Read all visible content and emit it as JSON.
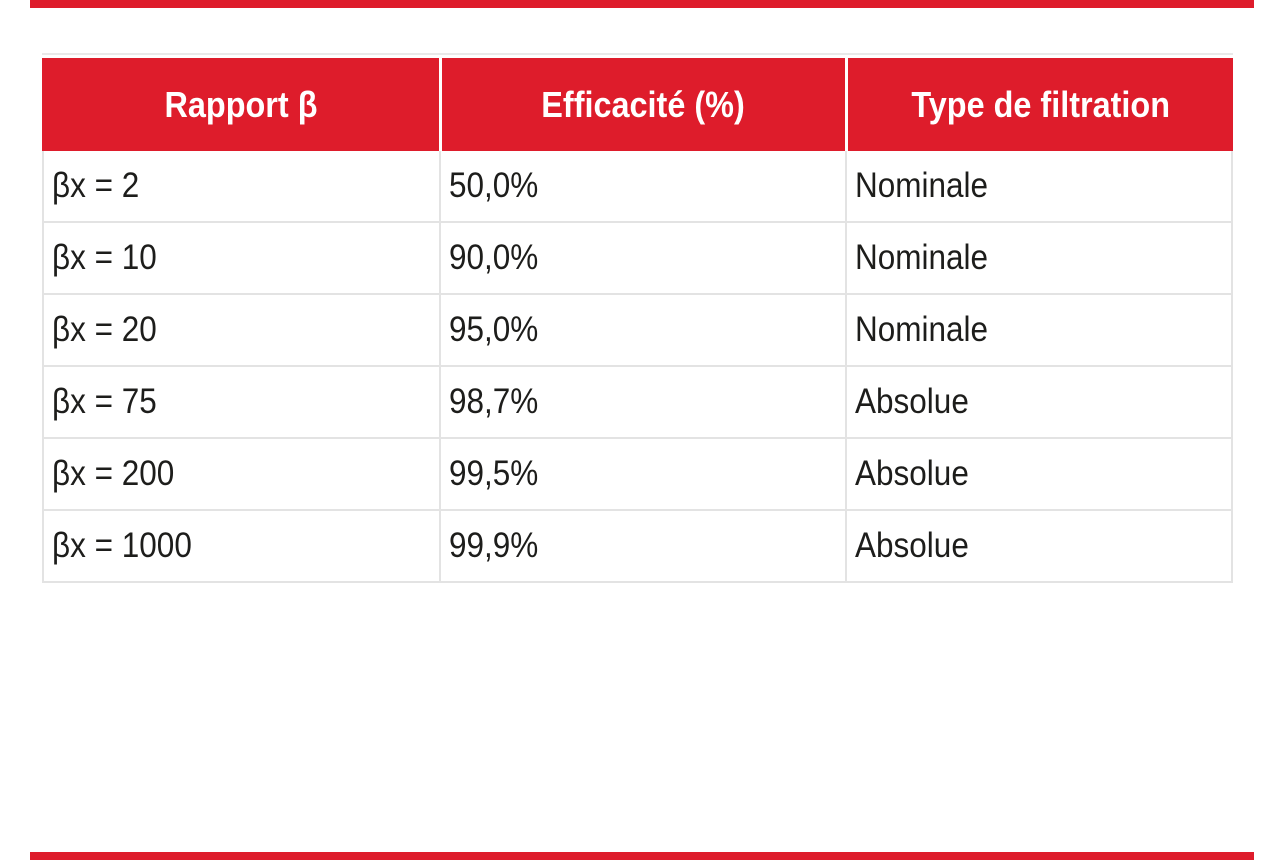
{
  "page": {
    "background_color": "#FFFFFF",
    "accent_red": "#DE1C2B",
    "text_color": "#1D1D1B",
    "grid_line_color": "#E3E3E3"
  },
  "decor": {
    "top_edge_bar": "red-bleed-bar",
    "bottom_edge_bar": "red-bleed-bar"
  },
  "table": {
    "columns": [
      {
        "label": "Rapport β"
      },
      {
        "label": "Efficacité (%)"
      },
      {
        "label": "Type de filtration"
      }
    ],
    "rows": [
      {
        "rapport": "βx = 2",
        "efficacite": "50,0%",
        "type": "Nominale"
      },
      {
        "rapport": "βx = 10",
        "efficacite": "90,0%",
        "type": "Nominale"
      },
      {
        "rapport": "βx = 20",
        "efficacite": "95,0%",
        "type": "Nominale"
      },
      {
        "rapport": "βx = 75",
        "efficacite": "98,7%",
        "type": "Absolue"
      },
      {
        "rapport": "βx = 200",
        "efficacite": "99,5%",
        "type": "Absolue"
      },
      {
        "rapport": "βx = 1000",
        "efficacite": "99,9%",
        "type": "Absolue"
      }
    ]
  }
}
